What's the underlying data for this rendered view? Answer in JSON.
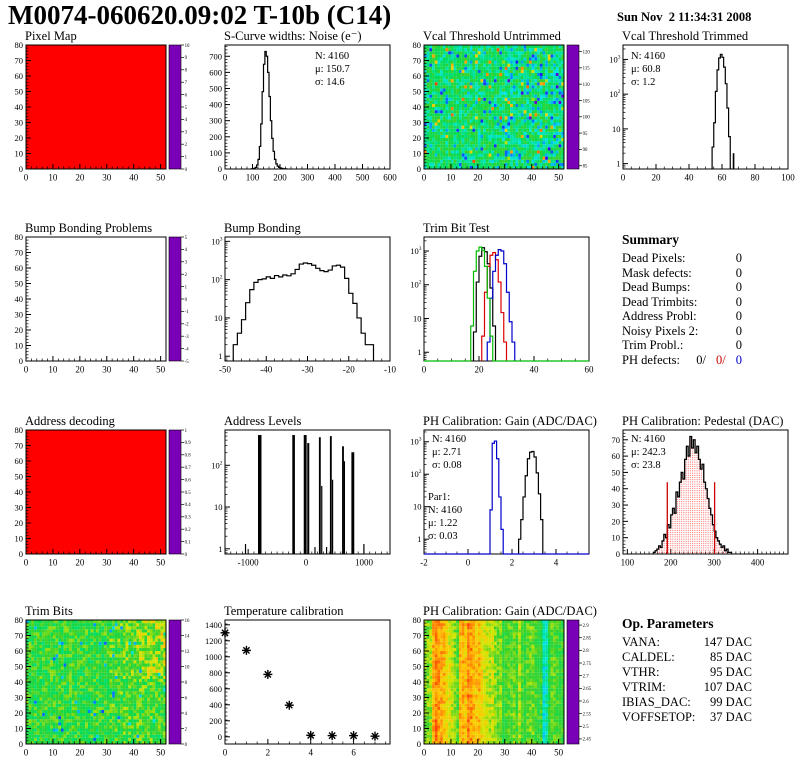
{
  "header": {
    "title": "M0074-060620.09:02 T-10b (C14)",
    "date": "Sun Nov  2 11:34:31 2008"
  },
  "summary": {
    "title": "Summary",
    "rows": [
      {
        "label": "Dead Pixels:",
        "value": "0"
      },
      {
        "label": "Mask defects:",
        "value": "0"
      },
      {
        "label": "Dead Bumps:",
        "value": "0"
      },
      {
        "label": "Dead Trimbits:",
        "value": "0"
      },
      {
        "label": "Address Probl:",
        "value": "0"
      },
      {
        "label": "Noisy Pixels 2:",
        "value": "0"
      },
      {
        "label": "Trim Probl.:",
        "value": "0"
      }
    ],
    "ph_defects": {
      "label": "PH defects:",
      "parts": [
        {
          "text": "0/",
          "color": "#000000"
        },
        {
          "text": "0/",
          "color": "#cc0000"
        },
        {
          "text": "0",
          "color": "#0000cc"
        }
      ]
    }
  },
  "op_parameters": {
    "title": "Op. Parameters",
    "rows": [
      {
        "label": "VANA:",
        "value": "147 DAC"
      },
      {
        "label": "CALDEL:",
        "value": "85 DAC"
      },
      {
        "label": "VTHR:",
        "value": "95 DAC"
      },
      {
        "label": "VTRIM:",
        "value": "107 DAC"
      },
      {
        "label": "IBIAS_DAC:",
        "value": "99 DAC"
      },
      {
        "label": "VOFFSETOP:",
        "value": "37 DAC"
      }
    ]
  },
  "palette": [
    [
      0,
      122,
      0,
      183
    ],
    [
      0.1,
      40,
      0,
      255
    ],
    [
      0.2,
      0,
      120,
      255
    ],
    [
      0.32,
      0,
      230,
      230
    ],
    [
      0.45,
      0,
      220,
      90
    ],
    [
      0.58,
      60,
      210,
      40
    ],
    [
      0.7,
      210,
      230,
      0
    ],
    [
      0.8,
      255,
      200,
      0
    ],
    [
      0.9,
      255,
      120,
      0
    ],
    [
      1,
      255,
      0,
      0
    ]
  ],
  "chart_data": [
    {
      "id": "pixel-map",
      "title": "Pixel Map",
      "grid": [
        0,
        0
      ],
      "type": "heatmap",
      "fill": "solid",
      "value": 10,
      "x": {
        "min": 0,
        "max": 52,
        "ticks": [
          0,
          10,
          20,
          30,
          40,
          50
        ],
        "minor": 2
      },
      "y": {
        "min": 0,
        "max": 80,
        "ticks": [
          0,
          10,
          20,
          30,
          40,
          50,
          60,
          70,
          80
        ],
        "minor": 2
      },
      "colorbar": {
        "min": 0,
        "max": 10,
        "tick_values": [
          0,
          1,
          2,
          3,
          4,
          5,
          6,
          7,
          8,
          9,
          10
        ]
      }
    },
    {
      "id": "scurve-noise",
      "title": "S-Curve widths: Noise (e⁻)",
      "grid": [
        0,
        1
      ],
      "type": "histogram",
      "x": {
        "min": 0,
        "max": 600,
        "ticks": [
          0,
          100,
          200,
          300,
          400,
          500,
          600
        ],
        "minor": 20
      },
      "y": {
        "min": 0,
        "max": 770,
        "ticks": [
          0,
          100,
          200,
          300,
          400,
          500,
          600,
          700
        ],
        "minor": 20,
        "scale": "linear"
      },
      "bins": {
        "x0": 95,
        "width": 5,
        "counts": [
          1,
          2,
          4,
          10,
          25,
          60,
          140,
          280,
          480,
          650,
          730,
          700,
          600,
          450,
          300,
          190,
          110,
          60,
          32,
          18,
          10,
          6,
          4,
          2,
          1,
          1
        ]
      },
      "stats": {
        "x": 116,
        "y": 16,
        "lh": 13,
        "lines": [
          {
            "text": "N: 4160",
            "color": "#000000"
          },
          {
            "text": "μ: 150.7",
            "color": "#000000"
          },
          {
            "text": "σ: 14.6",
            "color": "#000000"
          }
        ]
      }
    },
    {
      "id": "vcal-threshold-untrimmed",
      "title": "Vcal Threshold Untrimmed",
      "grid": [
        0,
        2
      ],
      "type": "heatmap",
      "fill": "noise-vcal",
      "seed": 7,
      "noise": {
        "base": 101.5,
        "spread": 4.5,
        "hot_prob": 0.035,
        "cold_prob": 0.07
      },
      "x": {
        "min": 0,
        "max": 52,
        "ticks": [
          0,
          10,
          20,
          30,
          40,
          50
        ],
        "minor": 2
      },
      "y": {
        "min": 0,
        "max": 80,
        "ticks": [
          0,
          10,
          20,
          30,
          40,
          50,
          60,
          70,
          80
        ],
        "minor": 2
      },
      "colorbar": {
        "min": 84,
        "max": 122,
        "tick_values": [
          85,
          90,
          95,
          100,
          105,
          110,
          115,
          120
        ]
      }
    },
    {
      "id": "vcal-threshold-trimmed",
      "title": "Vcal Threshold Trimmed",
      "grid": [
        0,
        3
      ],
      "type": "histogram",
      "x": {
        "min": 0,
        "max": 100,
        "ticks": [
          0,
          20,
          40,
          60,
          80,
          100
        ],
        "minor": 5
      },
      "y": {
        "min": 0.7,
        "max": 2600,
        "scale": "log"
      },
      "bins": {
        "x0": 54,
        "width": 1,
        "counts": [
          3,
          15,
          120,
          500,
          1100,
          1400,
          1150,
          600,
          200,
          40,
          6
        ]
      },
      "extra_bars": [
        {
          "x": 66.5,
          "w": 1,
          "h": 2
        }
      ],
      "stats": {
        "x": 34,
        "y": 16,
        "lh": 13,
        "lines": [
          {
            "text": "N: 4160",
            "color": "#000000"
          },
          {
            "text": "μ: 60.8",
            "color": "#000000"
          },
          {
            "text": "σ:  1.2",
            "color": "#000000"
          }
        ]
      }
    },
    {
      "id": "bump-bonding-problems",
      "title": "Bump Bonding Problems",
      "grid": [
        1,
        0
      ],
      "type": "heatmap",
      "fill": "empty",
      "x": {
        "min": 0,
        "max": 52,
        "ticks": [
          0,
          10,
          20,
          30,
          40,
          50
        ],
        "minor": 2
      },
      "y": {
        "min": 0,
        "max": 80,
        "ticks": [
          0,
          10,
          20,
          30,
          40,
          50,
          60,
          70,
          80
        ],
        "minor": 2
      },
      "colorbar": {
        "min": -5,
        "max": 5,
        "tick_values": [
          -5,
          -4,
          -3,
          -2,
          -1,
          0,
          1,
          2,
          3,
          4,
          5
        ]
      }
    },
    {
      "id": "bump-bonding",
      "title": "Bump Bonding",
      "grid": [
        1,
        1
      ],
      "type": "histogram",
      "x": {
        "min": -50,
        "max": -10,
        "ticks": [
          -50,
          -40,
          -30,
          -20,
          -10
        ],
        "minor": 2
      },
      "y": {
        "min": 0.75,
        "max": 1300,
        "scale": "log"
      },
      "bins": {
        "x0": -48,
        "width": 1,
        "counts": [
          2,
          4,
          9,
          25,
          55,
          85,
          100,
          105,
          118,
          108,
          128,
          118,
          132,
          126,
          142,
          185,
          255,
          272,
          262,
          238,
          198,
          172,
          162,
          178,
          228,
          238,
          212,
          108,
          44,
          24,
          10,
          4,
          2,
          2
        ]
      }
    },
    {
      "id": "trim-bit-test",
      "title": "Trim Bit Test",
      "grid": [
        1,
        2
      ],
      "type": "multi-histogram",
      "x": {
        "min": 0,
        "max": 60,
        "ticks": [
          0,
          20,
          40,
          60
        ],
        "minor": 5
      },
      "y": {
        "min": 0.55,
        "max": 2600,
        "scale": "log"
      },
      "series": [
        {
          "name": "trim-bits-14",
          "color": "#000000",
          "x0": 18,
          "width": 1,
          "counts": [
            4,
            120,
            700,
            1250,
            950,
            420,
            80,
            6
          ]
        },
        {
          "name": "trim-bits-13",
          "color": "#dd0000",
          "x0": 21,
          "width": 1,
          "counts": [
            3,
            60,
            350,
            750,
            900,
            550,
            120,
            15,
            2
          ]
        },
        {
          "name": "trim-bits-11",
          "color": "#0000cc",
          "x0": 23,
          "width": 1,
          "counts": [
            2,
            40,
            250,
            750,
            1100,
            1000,
            420,
            60,
            8,
            2
          ]
        },
        {
          "name": "trim-bits-7",
          "color": "#00bb00",
          "x0": 17,
          "width": 1,
          "counts": [
            6,
            250,
            1000,
            1300,
            1050,
            350,
            40,
            3
          ],
          "baseline": true
        }
      ]
    },
    {
      "id": "address-decoding",
      "title": "Address decoding",
      "grid": [
        2,
        0
      ],
      "type": "heatmap",
      "fill": "solid",
      "value": 1,
      "x": {
        "min": 0,
        "max": 52,
        "ticks": [
          0,
          10,
          20,
          30,
          40,
          50
        ],
        "minor": 2
      },
      "y": {
        "min": 0,
        "max": 80,
        "ticks": [
          0,
          10,
          20,
          30,
          40,
          50,
          60,
          70,
          80
        ],
        "minor": 2
      },
      "colorbar": {
        "min": 0,
        "max": 1,
        "tick_values": [
          0,
          0.1,
          0.2,
          0.3,
          0.4,
          0.5,
          0.6,
          0.7,
          0.8,
          0.9,
          1
        ]
      }
    },
    {
      "id": "address-levels",
      "title": "Address Levels",
      "grid": [
        2,
        1
      ],
      "type": "spikes",
      "x": {
        "min": -1400,
        "max": 1450,
        "ticks": [
          -1000,
          0,
          1000
        ],
        "minor": 100
      },
      "y": {
        "min": 0.75,
        "max": 700,
        "scale": "log"
      },
      "bars": [
        [
          -800,
          60,
          530
        ],
        [
          -215,
          45,
          530
        ],
        [
          -15,
          50,
          530
        ],
        [
          38,
          35,
          340
        ],
        [
          238,
          32,
          470
        ],
        [
          268,
          14,
          32
        ],
        [
          428,
          32,
          500
        ],
        [
          455,
          14,
          45
        ],
        [
          638,
          32,
          285
        ],
        [
          662,
          22,
          125
        ],
        [
          808,
          50,
          205
        ],
        [
          -1050,
          12,
          1.3
        ],
        [
          150,
          12,
          1.1
        ],
        [
          350,
          12,
          1.1
        ],
        [
          995,
          12,
          1.3
        ]
      ]
    },
    {
      "id": "ph-calibration-gain-hist",
      "title": "PH Calibration: Gain (ADC/DAC)",
      "grid": [
        2,
        2
      ],
      "type": "multi-histogram",
      "x": {
        "min": -2,
        "max": 5.5,
        "ticks": [
          -2,
          0,
          2,
          4
        ],
        "minor": 0.5
      },
      "y": {
        "min": 0.35,
        "max": 2300,
        "scale": "log"
      },
      "series": [
        {
          "name": "gain",
          "color": "#000000",
          "x0": 2.3,
          "width": 0.1,
          "counts": [
            1,
            4,
            20,
            90,
            300,
            480,
            500,
            340,
            110,
            25,
            4
          ]
        },
        {
          "name": "par1",
          "color": "#0000cc",
          "x0": 1.0,
          "width": 0.1,
          "counts": [
            8,
            900,
            1050,
            300,
            20,
            2
          ],
          "baseline": true
        }
      ],
      "stats": {
        "x": 34,
        "y": 14,
        "lh": 13,
        "lines": [
          {
            "text": "N: 4160",
            "color": "#000000"
          },
          {
            "text": "μ: 2.71",
            "color": "#000000"
          },
          {
            "text": "σ: 0.08",
            "color": "#000000"
          }
        ]
      },
      "stats2": {
        "x": 30,
        "y": 72,
        "lh": 13,
        "lines": [
          {
            "text": "Par1:",
            "color": "#0000cc"
          },
          {
            "text": "N: 4160",
            "color": "#0000cc"
          },
          {
            "text": "μ: 1.22",
            "color": "#0000cc"
          },
          {
            "text": "σ: 0.03",
            "color": "#0000cc"
          }
        ]
      }
    },
    {
      "id": "ph-calibration-pedestal",
      "title": "PH Calibration: Pedestal (DAC)",
      "grid": [
        2,
        3
      ],
      "type": "histogram",
      "fill": "red-dots",
      "x": {
        "min": 90,
        "max": 470,
        "ticks": [
          100,
          200,
          300,
          400
        ],
        "minor": 10
      },
      "y": {
        "min": 0,
        "max": 76,
        "ticks": [
          0,
          10,
          20,
          30,
          40,
          50,
          60,
          70
        ],
        "minor": 2,
        "scale": "linear"
      },
      "bins": {
        "x0": 160,
        "width": 4,
        "counts": [
          1,
          2,
          3,
          5,
          4,
          8,
          12,
          10,
          18,
          16,
          24,
          28,
          25,
          38,
          35,
          44,
          50,
          46,
          58,
          66,
          60,
          72,
          65,
          70,
          62,
          66,
          58,
          52,
          55,
          44,
          40,
          34,
          28,
          24,
          18,
          14,
          10,
          8,
          6,
          4,
          5,
          2,
          3,
          1,
          1
        ]
      },
      "vlines": [
        {
          "x": 192,
          "h": 44
        },
        {
          "x": 301,
          "h": 44
        }
      ],
      "stats": {
        "x": 34,
        "y": 14,
        "lh": 13,
        "lines": [
          {
            "text": "N: 4160",
            "color": "#000000"
          },
          {
            "text": "μ: 242.3",
            "color": "#cc0000"
          },
          {
            "text": "σ: 23.8",
            "color": "#cc0000"
          }
        ]
      }
    },
    {
      "id": "trim-bits",
      "title": "Trim Bits",
      "grid": [
        3,
        0
      ],
      "type": "heatmap",
      "fill": "noise-trimbits",
      "seed": 11,
      "noise": {
        "base": 8.6,
        "spread": 1.9,
        "cold_prob": 0.02
      },
      "x": {
        "min": 0,
        "max": 52,
        "ticks": [
          0,
          10,
          20,
          30,
          40,
          50
        ],
        "minor": 2
      },
      "y": {
        "min": 0,
        "max": 80,
        "ticks": [
          0,
          10,
          20,
          30,
          40,
          50,
          60,
          70,
          80
        ],
        "minor": 2
      },
      "colorbar": {
        "min": 0,
        "max": 16,
        "tick_values": [
          0,
          2,
          4,
          6,
          8,
          10,
          12,
          14,
          16
        ]
      }
    },
    {
      "id": "temperature-calibration",
      "title": "Temperature calibration",
      "grid": [
        3,
        1
      ],
      "type": "scatter",
      "marker": "asterisk",
      "x": {
        "min": 0,
        "max": 7.7,
        "ticks": [
          0,
          2,
          4,
          6
        ],
        "minor": 0.5
      },
      "y": {
        "min": -90,
        "max": 1460,
        "ticks": [
          0,
          200,
          400,
          600,
          800,
          1000,
          1200,
          1400
        ],
        "minor": 50,
        "scale": "linear"
      },
      "points": [
        [
          0,
          1300
        ],
        [
          1,
          1080
        ],
        [
          2,
          780
        ],
        [
          3,
          395
        ],
        [
          4,
          18
        ],
        [
          5,
          15
        ],
        [
          6,
          15
        ],
        [
          7,
          8
        ]
      ]
    },
    {
      "id": "ph-calibration-gain-map",
      "title": "PH Calibration: Gain (ADC/DAC)",
      "grid": [
        3,
        2
      ],
      "type": "heatmap",
      "fill": "cols",
      "seed": 5,
      "jitter": 0.035,
      "col_values": [
        2.74,
        2.74,
        2.76,
        2.84,
        2.86,
        2.85,
        2.84,
        2.83,
        2.8,
        2.78,
        2.77,
        2.74,
        2.72,
        2.83,
        2.84,
        2.82,
        2.86,
        2.85,
        2.83,
        2.82,
        2.83,
        2.8,
        2.78,
        2.77,
        2.76,
        2.77,
        2.74,
        2.73,
        2.74,
        2.7,
        2.71,
        2.72,
        2.72,
        2.73,
        2.71,
        2.76,
        2.71,
        2.7,
        2.72,
        2.73,
        2.73,
        2.71,
        2.7,
        2.7,
        2.6,
        2.61,
        2.68,
        2.72,
        2.72,
        2.71,
        2.7,
        2.7
      ],
      "x": {
        "min": 0,
        "max": 52,
        "ticks": [
          0,
          10,
          20,
          30,
          40,
          50
        ],
        "minor": 2
      },
      "y": {
        "min": 0,
        "max": 80,
        "ticks": [
          0,
          10,
          20,
          30,
          40,
          50,
          60,
          70,
          80
        ],
        "minor": 2
      },
      "colorbar": {
        "min": 2.43,
        "max": 2.92,
        "tick_values": [
          2.45,
          2.5,
          2.55,
          2.6,
          2.65,
          2.7,
          2.75,
          2.8,
          2.85,
          2.9
        ]
      }
    }
  ]
}
